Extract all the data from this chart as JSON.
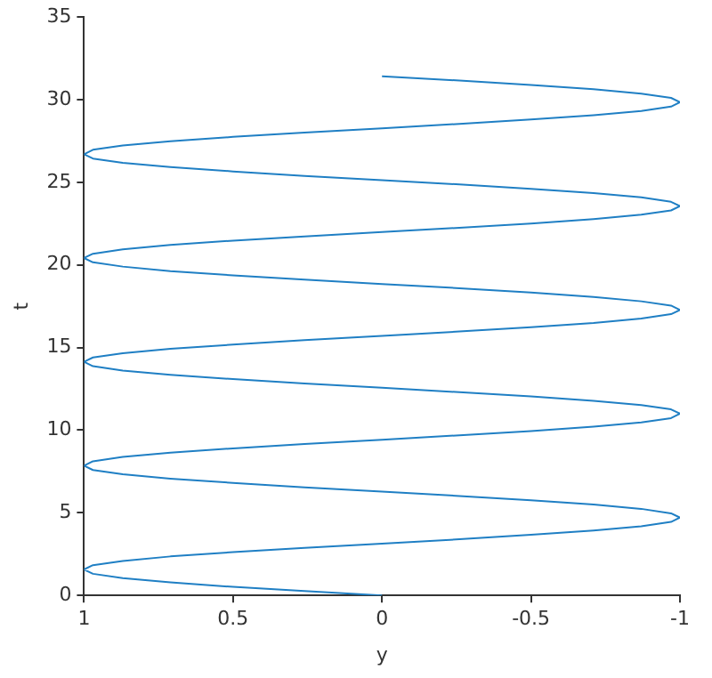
{
  "chart_data": {
    "type": "line",
    "xlabel": "y",
    "ylabel": "t",
    "color": "#1f7fc4",
    "grid": false,
    "legend": false,
    "marker": "none",
    "line_style": "solid",
    "xlim": [
      1,
      -1
    ],
    "xticks": [
      1,
      0.5,
      0,
      -0.5,
      -1
    ],
    "ylim": [
      0,
      35
    ],
    "yticks": [
      0,
      5,
      10,
      15,
      20,
      25,
      30,
      35
    ],
    "x": [
      0,
      0.26,
      0.5,
      0.71,
      0.87,
      0.97,
      1,
      0.97,
      0.87,
      0.71,
      0.5,
      0.26,
      0,
      -0.26,
      -0.5,
      -0.71,
      -0.87,
      -0.97,
      -1,
      -0.97,
      -0.87,
      -0.71,
      -0.5,
      -0.26,
      0,
      0.26,
      0.5,
      0.71,
      0.87,
      0.97,
      1,
      0.97,
      0.87,
      0.71,
      0.5,
      0.26,
      0,
      -0.26,
      -0.5,
      -0.71,
      -0.87,
      -0.97,
      -1,
      -0.97,
      -0.87,
      -0.71,
      -0.5,
      -0.26,
      0,
      0.26,
      0.5,
      0.71,
      0.87,
      0.97,
      1,
      0.97,
      0.87,
      0.71,
      0.5,
      0.26,
      0,
      -0.26,
      -0.5,
      -0.71,
      -0.87,
      -0.97,
      -1,
      -0.97,
      -0.87,
      -0.71,
      -0.5,
      -0.26,
      0,
      0.26,
      0.5,
      0.71,
      0.87,
      0.97,
      1,
      0.97,
      0.87,
      0.71,
      0.5,
      0.26,
      0,
      -0.26,
      -0.5,
      -0.71,
      -0.87,
      -0.97,
      -1,
      -0.97,
      -0.87,
      -0.71,
      -0.5,
      -0.26,
      0,
      0.26,
      0.5,
      0.71,
      0.87,
      0.97,
      1,
      0.97,
      0.87,
      0.71,
      0.5,
      0.26,
      0,
      -0.26,
      -0.5,
      -0.71,
      -0.87,
      -0.97,
      -1,
      -0.97,
      -0.87,
      -0.71,
      -0.5,
      -0.26,
      0
    ],
    "values": [
      0,
      0.26,
      0.52,
      0.79,
      1.05,
      1.31,
      1.57,
      1.83,
      2.09,
      2.36,
      2.62,
      2.88,
      3.14,
      3.4,
      3.67,
      3.93,
      4.19,
      4.45,
      4.71,
      4.97,
      5.24,
      5.5,
      5.76,
      6.02,
      6.28,
      6.54,
      6.81,
      7.07,
      7.33,
      7.59,
      7.85,
      8.12,
      8.38,
      8.64,
      8.9,
      9.16,
      9.42,
      9.69,
      9.95,
      10.21,
      10.47,
      10.73,
      11,
      11.26,
      11.52,
      11.78,
      12.04,
      12.3,
      12.57,
      12.83,
      13.09,
      13.35,
      13.61,
      13.87,
      14.14,
      14.4,
      14.66,
      14.92,
      15.18,
      15.45,
      15.71,
      15.97,
      16.23,
      16.49,
      16.76,
      17.02,
      17.28,
      17.54,
      17.8,
      18.06,
      18.33,
      18.59,
      18.85,
      19.11,
      19.37,
      19.63,
      19.9,
      20.16,
      20.42,
      20.68,
      20.94,
      21.21,
      21.47,
      21.73,
      21.99,
      22.25,
      22.51,
      22.78,
      23.04,
      23.3,
      23.56,
      23.82,
      24.09,
      24.35,
      24.61,
      24.87,
      25.13,
      25.39,
      25.66,
      25.92,
      26.18,
      26.44,
      26.7,
      26.97,
      27.23,
      27.49,
      27.75,
      28.01,
      28.27,
      28.54,
      28.8,
      29.06,
      29.32,
      29.58,
      29.85,
      30.11,
      30.37,
      30.63,
      30.89,
      31.16,
      31.42
    ]
  }
}
